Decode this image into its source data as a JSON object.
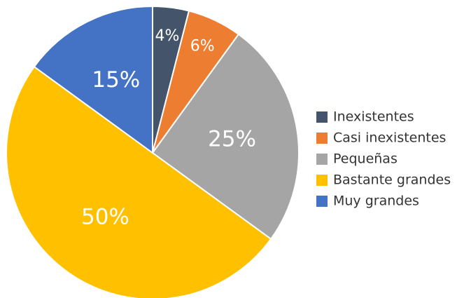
{
  "chart_data": {
    "type": "pie",
    "categories": [
      "Inexistentes",
      "Casi inexistentes",
      "Pequeñas",
      "Bastante grandes",
      "Muy grandes"
    ],
    "values": [
      4,
      6,
      25,
      50,
      15
    ],
    "value_labels": [
      "4%",
      "6%",
      "25%",
      "50%",
      "15%"
    ],
    "colors": [
      "#44546a",
      "#ed7d31",
      "#a5a5a5",
      "#ffc000",
      "#4472c4"
    ],
    "legend": "right"
  }
}
